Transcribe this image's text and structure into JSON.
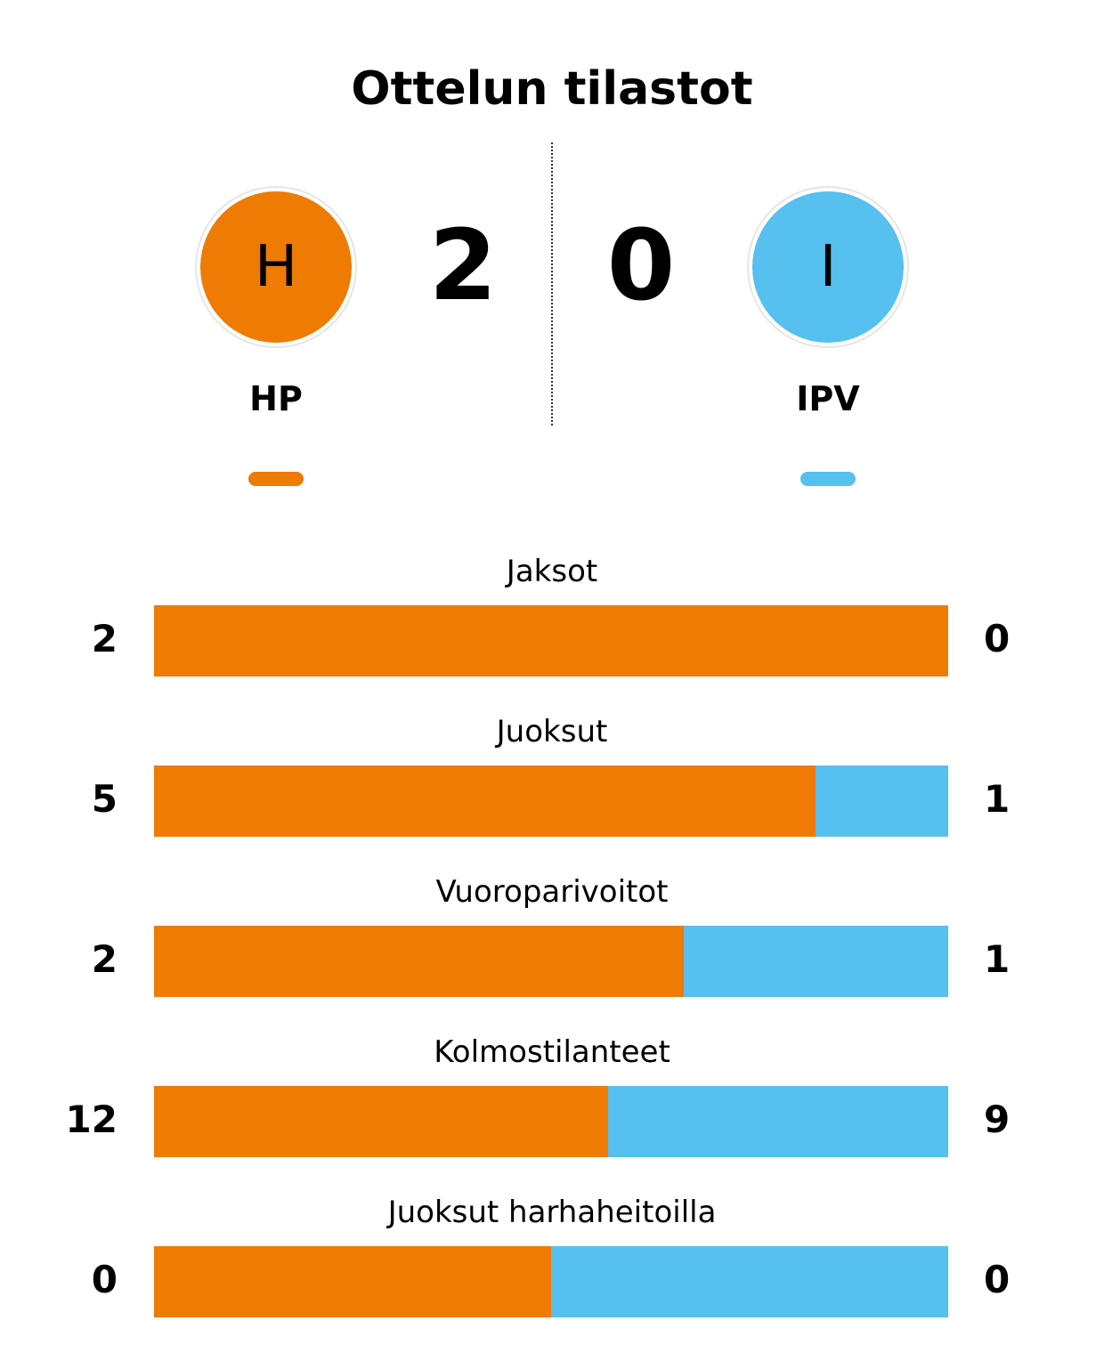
{
  "title": "Ottelun tilastot",
  "colors": {
    "home": "#ee7b03",
    "away": "#56c0ee"
  },
  "home": {
    "name": "HP",
    "initial": "H",
    "score": "2"
  },
  "away": {
    "name": "IPV",
    "initial": "I",
    "score": "0"
  },
  "chart_data": {
    "type": "bar",
    "orientation": "horizontal-stacked-share",
    "categories": [
      "Jaksot",
      "Juoksut",
      "Vuoroparivoitot",
      "Kolmostilanteet",
      "Juoksut harhaheitoilla"
    ],
    "series": [
      {
        "name": "HP",
        "values": [
          2,
          5,
          2,
          12,
          0
        ]
      },
      {
        "name": "IPV",
        "values": [
          0,
          1,
          1,
          9,
          0
        ]
      }
    ]
  }
}
